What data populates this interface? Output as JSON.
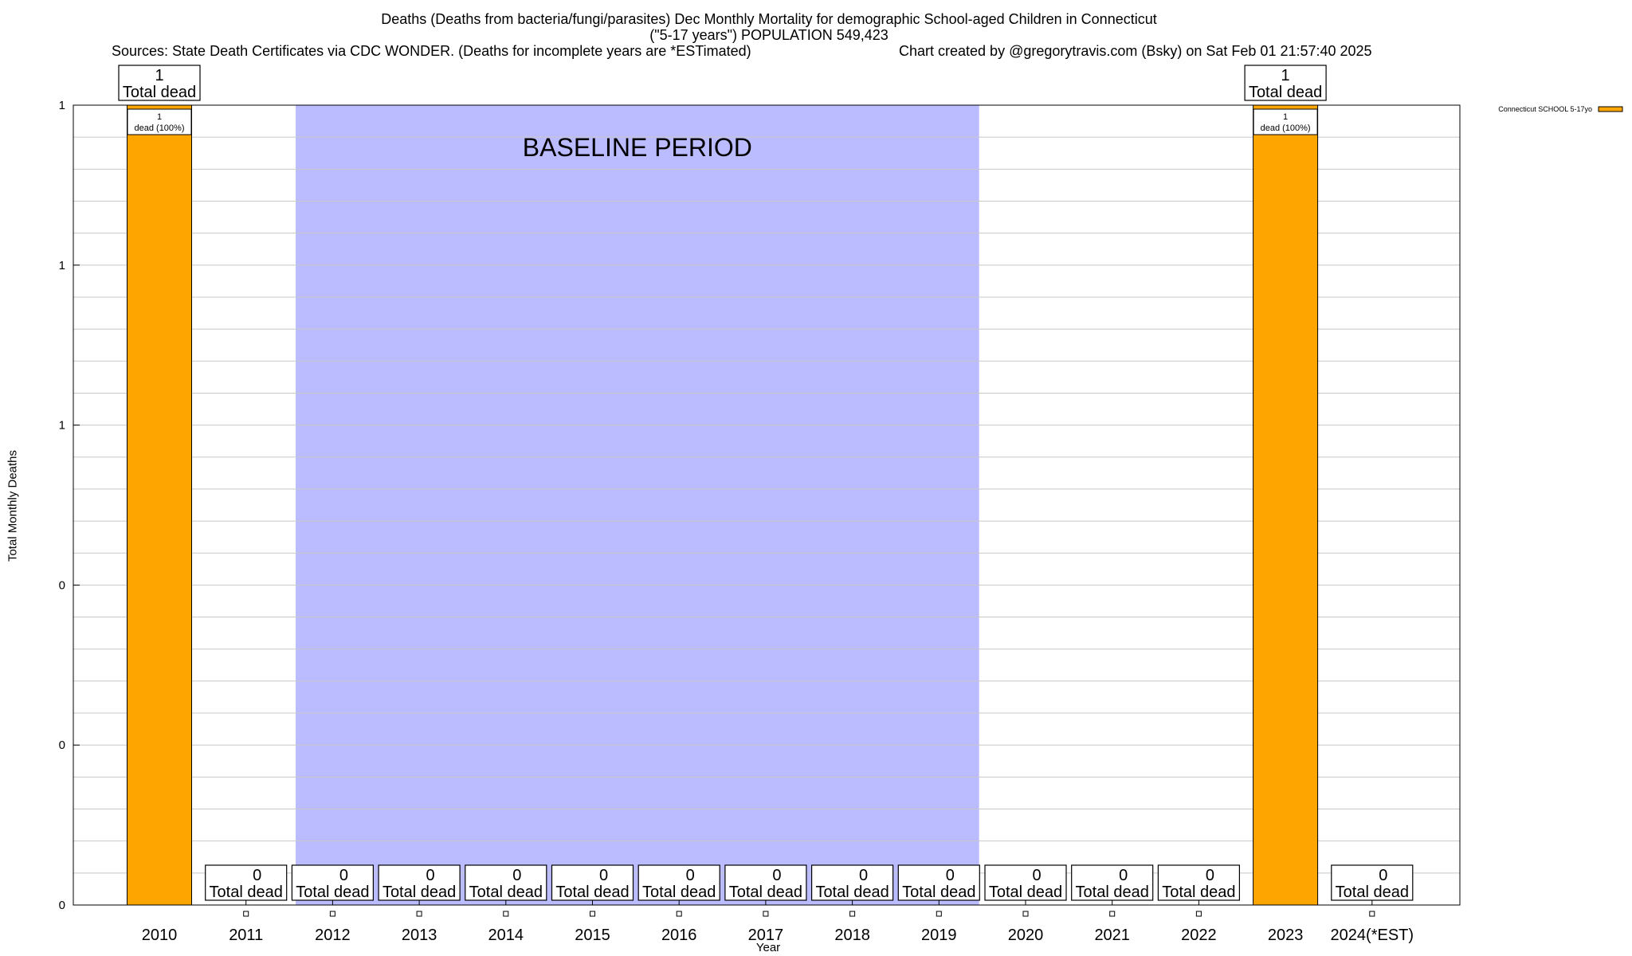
{
  "chart_data": {
    "type": "bar",
    "title": "Deaths (Deaths from bacteria/fungi/parasites) Dec Monthly Mortality for demographic School-aged Children in Connecticut",
    "subtitle": "(\"5-17 years\") POPULATION 549,423",
    "sources": "Sources: State Death Certificates via CDC WONDER. (Deaths for incomplete years are *ESTimated)",
    "credit": "Chart created by @gregorytravis.com (Bsky) on Sat Feb 01 21:57:40 2025",
    "xlabel": "Year",
    "ylabel": "Total Monthly Deaths",
    "categories": [
      "2010",
      "2011",
      "2012",
      "2013",
      "2014",
      "2015",
      "2016",
      "2017",
      "2018",
      "2019",
      "2020",
      "2021",
      "2022",
      "2023",
      "2024(*EST)"
    ],
    "series": [
      {
        "name": "Connecticut SCHOOL 5-17yo",
        "color": "#FFA500",
        "values": [
          1,
          0,
          0,
          0,
          0,
          0,
          0,
          0,
          0,
          0,
          0,
          0,
          0,
          1,
          0
        ]
      }
    ],
    "total_labels": {
      "numbers": [
        "1",
        "0",
        "0",
        "0",
        "0",
        "0",
        "0",
        "0",
        "0",
        "0",
        "0",
        "0",
        "0",
        "1",
        "0"
      ],
      "caption": "Total dead"
    },
    "segment_labels": {
      "2010": {
        "count": "1",
        "text": "dead (100%)"
      },
      "2023": {
        "count": "1",
        "text": "dead (100%)"
      }
    },
    "yticks": [
      "0",
      "0",
      "0",
      "1",
      "1",
      "1"
    ],
    "ylim": [
      0,
      1
    ],
    "grid": true,
    "baseline": {
      "label": "BASELINE PERIOD",
      "from": "2012",
      "to": "2019",
      "color": "#BBBBFF"
    },
    "legend_position": "top-right"
  }
}
